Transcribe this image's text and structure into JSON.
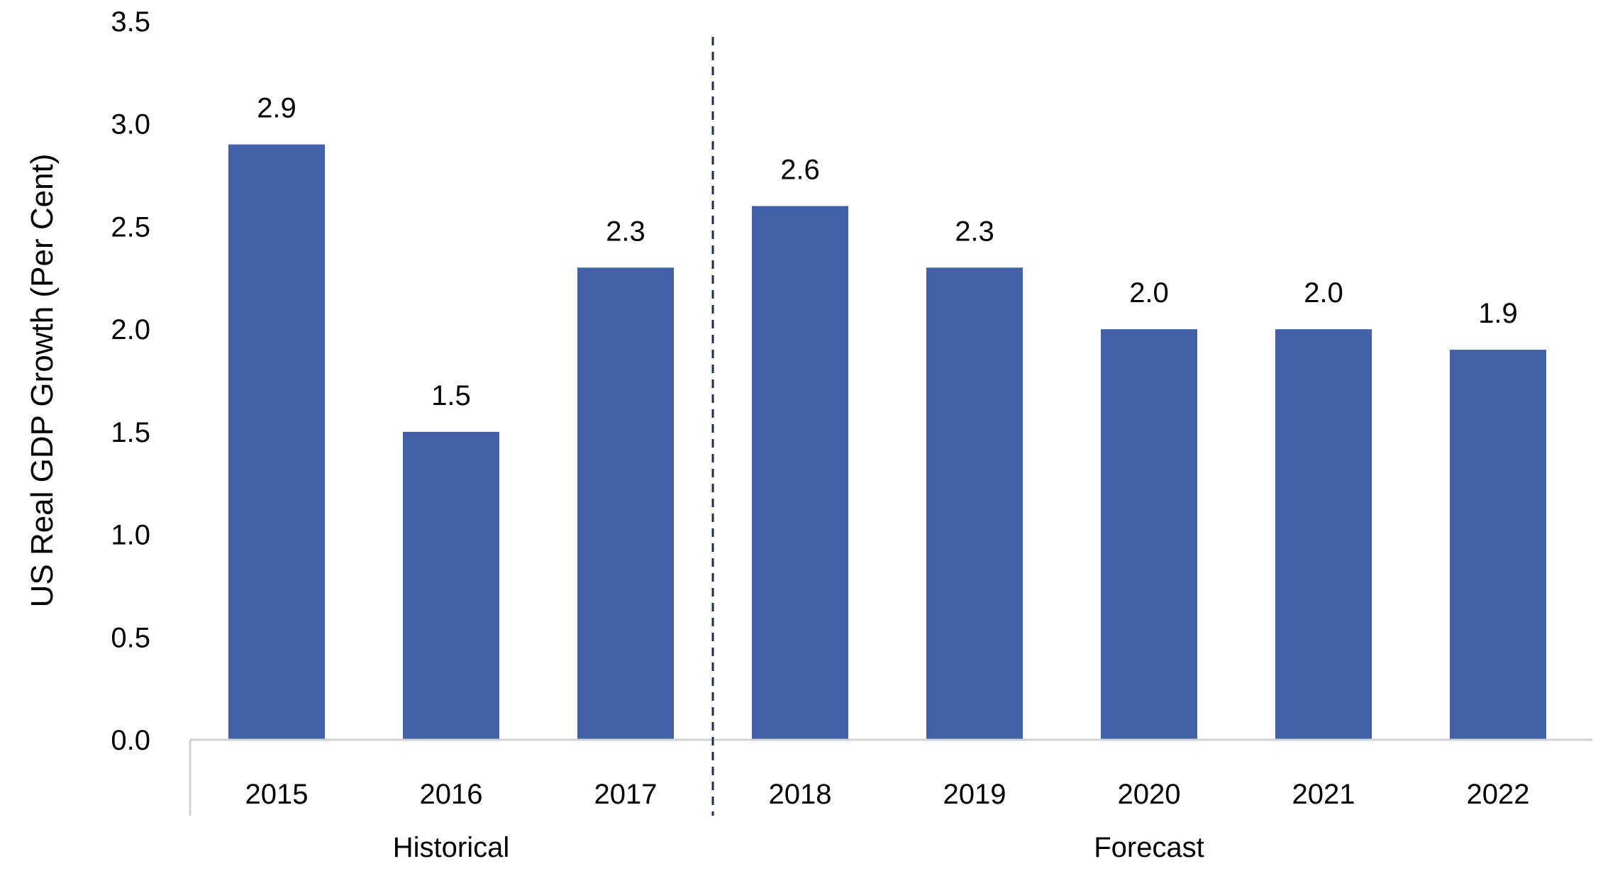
{
  "chart_data": {
    "type": "bar",
    "categories": [
      "2015",
      "2016",
      "2017",
      "2018",
      "2019",
      "2020",
      "2021",
      "2022"
    ],
    "values": [
      2.9,
      1.5,
      2.3,
      2.6,
      2.3,
      2.0,
      2.0,
      1.9
    ],
    "data_labels": [
      "2.9",
      "1.5",
      "2.3",
      "2.6",
      "2.3",
      "2.0",
      "2.0",
      "1.9"
    ],
    "groups": [
      {
        "label": "Historical",
        "categories": [
          "2015",
          "2016",
          "2017"
        ]
      },
      {
        "label": "Forecast",
        "categories": [
          "2018",
          "2019",
          "2020",
          "2021",
          "2022"
        ]
      }
    ],
    "ylabel": "US Real GDP Growth (Per Cent)",
    "ylim": [
      0,
      3.5
    ],
    "yticks": [
      "0.0",
      "0.5",
      "1.0",
      "1.5",
      "2.0",
      "2.5",
      "3.0",
      "3.5"
    ],
    "grid": false,
    "legend": "none",
    "divider": "dashed line between 2017 and 2018",
    "colors": {
      "bar": "#4361a9",
      "axis": "#d0d0d0",
      "divider": "#1f2d4d"
    }
  }
}
